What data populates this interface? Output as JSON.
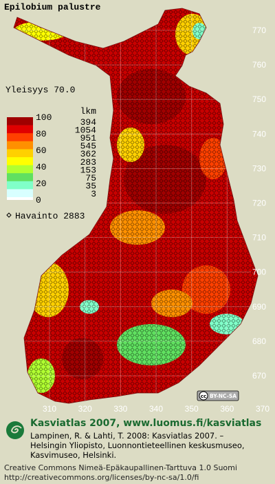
{
  "map": {
    "title": "Epilobium palustre",
    "frequency_label": "Yleisyys 70.0",
    "legend": {
      "scale_labels": [
        100,
        80,
        60,
        40,
        20,
        0
      ],
      "count_header": "lkm",
      "counts": [
        394,
        1054,
        951,
        545,
        362,
        283,
        153,
        75,
        35,
        3
      ],
      "colors": [
        "#a00000",
        "#e00000",
        "#ff4000",
        "#ff9000",
        "#ffd000",
        "#ffff00",
        "#b0ff30",
        "#60e060",
        "#80ffc8",
        "#d8ffff"
      ]
    },
    "observations_label": "Havainto 2883",
    "y_ticks": [
      770,
      760,
      750,
      740,
      730,
      720,
      710,
      700,
      690,
      680,
      670
    ],
    "x_ticks": [
      310,
      320,
      330,
      340,
      350,
      360,
      370
    ],
    "badge": [
      "cc",
      "BY-NC-SA"
    ]
  },
  "footer": {
    "heading": "Kasviatlas 2007, www.luomus.fi/kasviatlas",
    "citation": [
      "Lampinen, R. & Lahti, T. 2008: Kasviatlas 2007. –",
      "Helsingin Yliopisto, Luonnontieteellinen keskusmuseo,",
      "Kasvimuseo, Helsinki."
    ],
    "license": [
      "Creative Commons Nimeä-Epäkaupallinen-Tarttuva 1.0 Suomi",
      "http://creativecommons.org/licenses/by-nc-sa/1.0/fi"
    ]
  }
}
